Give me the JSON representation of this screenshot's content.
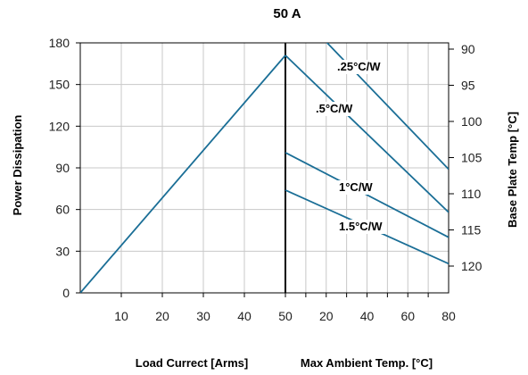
{
  "chart_data": {
    "type": "line",
    "title": "50 A",
    "grid": true,
    "left_axis": {
      "label": "Power Dissipation",
      "ylim": [
        0,
        180
      ],
      "ticks": [
        0,
        30,
        60,
        90,
        120,
        150,
        180
      ]
    },
    "right_axis": {
      "label": "Base Plate Temp [°C]",
      "ticks": [
        90,
        95,
        100,
        105,
        110,
        115,
        120
      ]
    },
    "bottom_left": {
      "label": "Load Currect [Arms]",
      "xlim": [
        0,
        50
      ],
      "ticks": [
        10,
        20,
        30,
        40,
        50
      ]
    },
    "bottom_right": {
      "label": "Max Ambient Temp. [°C]",
      "xlim": [
        0,
        80
      ],
      "ticks": [
        20,
        40,
        60,
        80
      ]
    },
    "load_curve": {
      "x": [
        0,
        50
      ],
      "y": [
        0,
        171
      ]
    },
    "series": [
      {
        "name": ".25°C/W",
        "x": [
          10,
          80
        ],
        "y": [
          196,
          89
        ]
      },
      {
        "name": ".5°C/W",
        "x": [
          0,
          80
        ],
        "y": [
          171,
          58
        ]
      },
      {
        "name": "1°C/W",
        "x": [
          0,
          80
        ],
        "y": [
          101,
          40
        ]
      },
      {
        "name": "1.5°C/W",
        "x": [
          0,
          80
        ],
        "y": [
          74,
          21
        ]
      }
    ],
    "line_color": "#1a6e96",
    "grid_color": "#c8c8c8"
  }
}
